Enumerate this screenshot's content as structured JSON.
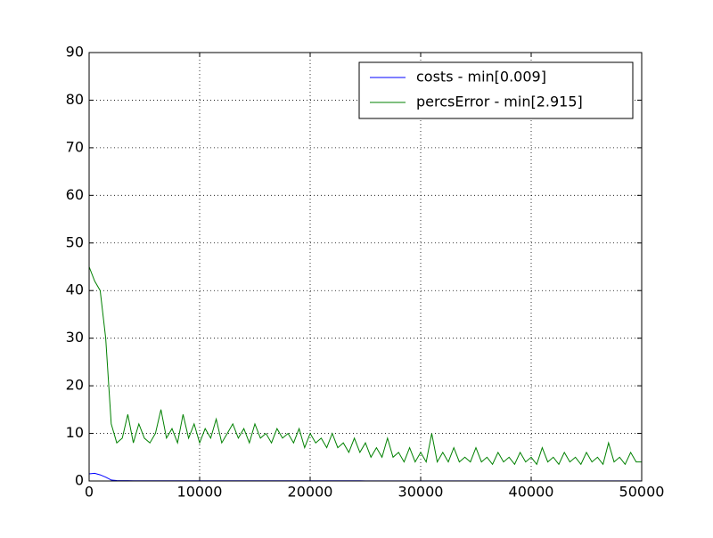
{
  "chart_data": {
    "type": "line",
    "x": [
      0,
      500,
      1000,
      1500,
      2000,
      2500,
      3000,
      3500,
      4000,
      4500,
      5000,
      5500,
      6000,
      6500,
      7000,
      7500,
      8000,
      8500,
      9000,
      9500,
      10000,
      10500,
      11000,
      11500,
      12000,
      12500,
      13000,
      13500,
      14000,
      14500,
      15000,
      15500,
      16000,
      16500,
      17000,
      17500,
      18000,
      18500,
      19000,
      19500,
      20000,
      20500,
      21000,
      21500,
      22000,
      22500,
      23000,
      23500,
      24000,
      24500,
      25000,
      25500,
      26000,
      26500,
      27000,
      27500,
      28000,
      28500,
      29000,
      29500,
      30000,
      30500,
      31000,
      31500,
      32000,
      32500,
      33000,
      33500,
      34000,
      34500,
      35000,
      35500,
      36000,
      36500,
      37000,
      37500,
      38000,
      38500,
      39000,
      39500,
      40000,
      40500,
      41000,
      41500,
      42000,
      42500,
      43000,
      43500,
      44000,
      44500,
      45000,
      45500,
      46000,
      46500,
      47000,
      47500,
      48000,
      48500,
      49000,
      49500,
      50000
    ],
    "series": [
      {
        "name": "costs - min[0.009]",
        "color": "#0000ff",
        "values": [
          1.5,
          1.6,
          1.3,
          0.8,
          0.2,
          0.1,
          0.08,
          0.07,
          0.06,
          0.05,
          0.05,
          0.05,
          0.05,
          0.05,
          0.05,
          0.05,
          0.05,
          0.05,
          0.05,
          0.05,
          0.05,
          0.05,
          0.05,
          0.05,
          0.05,
          0.05,
          0.05,
          0.05,
          0.05,
          0.05,
          0.05,
          0.05,
          0.05,
          0.05,
          0.05,
          0.05,
          0.05,
          0.05,
          0.05,
          0.05,
          0.05,
          0.05,
          0.05,
          0.05,
          0.05,
          0.05,
          0.05,
          0.05,
          0.05,
          0.05,
          0.02,
          0.02,
          0.02,
          0.02,
          0.02,
          0.02,
          0.02,
          0.02,
          0.02,
          0.02,
          0.02,
          0.02,
          0.02,
          0.02,
          0.02,
          0.02,
          0.02,
          0.02,
          0.02,
          0.02,
          0.02,
          0.02,
          0.02,
          0.02,
          0.02,
          0.02,
          0.02,
          0.02,
          0.02,
          0.02,
          0.02,
          0.02,
          0.02,
          0.02,
          0.02,
          0.02,
          0.02,
          0.02,
          0.02,
          0.02,
          0.02,
          0.02,
          0.02,
          0.02,
          0.02,
          0.02,
          0.02,
          0.02,
          0.02,
          0.02,
          0.02
        ]
      },
      {
        "name": "percsError - min[2.915]",
        "color": "#008000",
        "values": [
          45,
          42,
          40,
          30,
          12,
          8,
          9,
          14,
          8,
          12,
          9,
          8,
          10,
          15,
          9,
          11,
          8,
          14,
          9,
          12,
          8,
          11,
          9,
          13,
          8,
          10,
          12,
          9,
          11,
          8,
          12,
          9,
          10,
          8,
          11,
          9,
          10,
          8,
          11,
          7,
          10,
          8,
          9,
          7,
          10,
          7,
          8,
          6,
          9,
          6,
          8,
          5,
          7,
          5,
          9,
          5,
          6,
          4,
          7,
          4,
          6,
          4,
          10,
          4,
          6,
          4,
          7,
          4,
          5,
          4,
          7,
          4,
          5,
          3.5,
          6,
          4,
          5,
          3.5,
          6,
          4,
          5,
          3.5,
          7,
          4,
          5,
          3.5,
          6,
          4,
          5,
          3.5,
          6,
          4,
          5,
          3.5,
          8,
          4,
          5,
          3.5,
          6,
          4,
          4
        ]
      }
    ],
    "xlim": [
      0,
      50000
    ],
    "xticks": [
      0,
      10000,
      20000,
      30000,
      40000,
      50000
    ],
    "ylim": [
      0,
      90
    ],
    "yticks": [
      0,
      10,
      20,
      30,
      40,
      50,
      60,
      70,
      80,
      90
    ],
    "grid": true,
    "legend": "upper right"
  }
}
